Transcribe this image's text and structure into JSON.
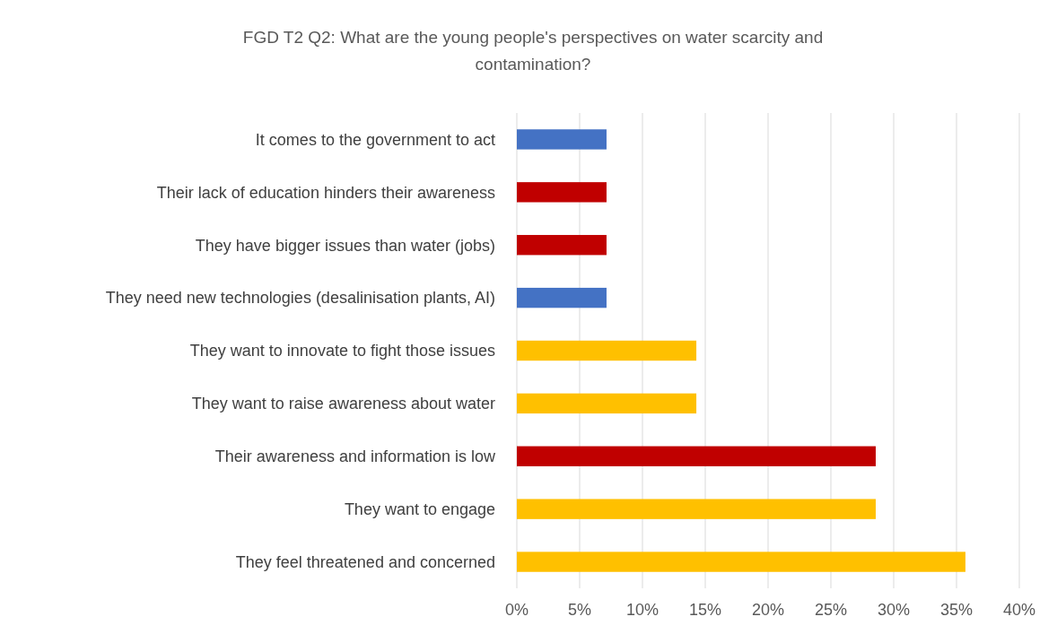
{
  "chart_data": {
    "type": "bar",
    "orientation": "horizontal",
    "title": "FGD T2 Q2: What are the young people's perspectives on water scarcity and contamination?",
    "categories": [
      "It comes to the government to act",
      "Their lack of education hinders their awareness",
      "They have bigger issues than water (jobs)",
      "They need new technologies (desalinisation plants, AI)",
      "They want to innovate to fight those issues",
      "They want to raise awareness about water",
      "Their awareness and information is low",
      "They want to engage",
      "They feel threatened and concerned"
    ],
    "values": [
      7.14,
      7.14,
      7.14,
      7.14,
      14.29,
      14.29,
      28.57,
      28.57,
      35.71
    ],
    "colors": [
      "#4472c4",
      "#c00000",
      "#c00000",
      "#4472c4",
      "#ffc000",
      "#ffc000",
      "#c00000",
      "#ffc000",
      "#ffc000"
    ],
    "xlim": [
      0,
      40
    ],
    "xticks": [
      {
        "value": 0,
        "label": "0%"
      },
      {
        "value": 5,
        "label": "5%"
      },
      {
        "value": 10,
        "label": "10%"
      },
      {
        "value": 15,
        "label": "15%"
      },
      {
        "value": 20,
        "label": "20%"
      },
      {
        "value": 25,
        "label": "25%"
      },
      {
        "value": 30,
        "label": "30%"
      },
      {
        "value": 35,
        "label": "35%"
      },
      {
        "value": 40,
        "label": "40%"
      }
    ],
    "grid": "x"
  }
}
